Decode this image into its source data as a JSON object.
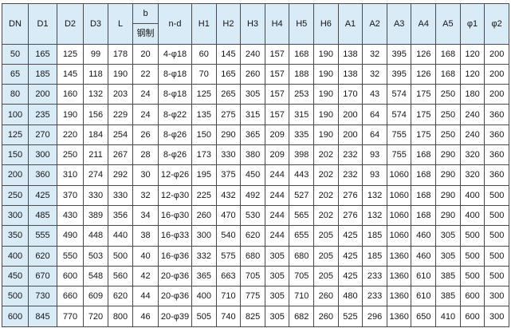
{
  "table": {
    "title": "flange-dimension-spec-table",
    "header": {
      "left": [
        "DN",
        "D1",
        "D2",
        "D3",
        "L"
      ],
      "b_top": "b",
      "b_bottom": "钢制",
      "right": [
        "n-d",
        "H1",
        "H2",
        "H3",
        "H4",
        "H5",
        "H6",
        "A1",
        "A2",
        "A3",
        "A4",
        "A5",
        "φ1",
        "φ2"
      ]
    },
    "rows": [
      [
        "50",
        "165",
        "125",
        "99",
        "178",
        "20",
        "4-φ18",
        "60",
        "145",
        "240",
        "157",
        "168",
        "190",
        "138",
        "32",
        "395",
        "126",
        "168",
        "120",
        "200"
      ],
      [
        "65",
        "185",
        "145",
        "118",
        "190",
        "22",
        "8-φ18",
        "70",
        "165",
        "260",
        "157",
        "188",
        "190",
        "138",
        "32",
        "395",
        "126",
        "168",
        "120",
        "200"
      ],
      [
        "80",
        "200",
        "160",
        "132",
        "203",
        "24",
        "8-φ18",
        "125",
        "265",
        "305",
        "157",
        "253",
        "190",
        "170",
        "43",
        "574",
        "175",
        "250",
        "180",
        "200"
      ],
      [
        "100",
        "235",
        "190",
        "156",
        "229",
        "24",
        "8-φ22",
        "135",
        "275",
        "315",
        "157",
        "315",
        "190",
        "200",
        "64",
        "574",
        "175",
        "250",
        "240",
        "360"
      ],
      [
        "125",
        "270",
        "220",
        "184",
        "254",
        "26",
        "8-φ26",
        "150",
        "290",
        "365",
        "209",
        "335",
        "190",
        "200",
        "64",
        "755",
        "175",
        "250",
        "240",
        "360"
      ],
      [
        "150",
        "300",
        "250",
        "211",
        "267",
        "28",
        "8-φ26",
        "173",
        "330",
        "380",
        "209",
        "398",
        "202",
        "232",
        "93",
        "755",
        "168",
        "290",
        "320",
        "360"
      ],
      [
        "200",
        "360",
        "310",
        "274",
        "292",
        "30",
        "12-φ26",
        "195",
        "375",
        "450",
        "244",
        "443",
        "202",
        "232",
        "93",
        "1060",
        "168",
        "290",
        "320",
        "360"
      ],
      [
        "250",
        "425",
        "370",
        "330",
        "330",
        "32",
        "12-φ30",
        "225",
        "432",
        "492",
        "244",
        "527",
        "202",
        "276",
        "132",
        "1060",
        "168",
        "290",
        "400",
        "500"
      ],
      [
        "300",
        "485",
        "430",
        "389",
        "356",
        "34",
        "16-φ30",
        "260",
        "470",
        "530",
        "244",
        "565",
        "202",
        "276",
        "132",
        "1060",
        "168",
        "290",
        "400",
        "500"
      ],
      [
        "350",
        "555",
        "490",
        "448",
        "440",
        "38",
        "16-φ33",
        "300",
        "540",
        "620",
        "244",
        "655",
        "205",
        "425",
        "185",
        "1060",
        "460",
        "305",
        "500",
        "500"
      ],
      [
        "400",
        "620",
        "550",
        "503",
        "500",
        "40",
        "16-φ36",
        "332",
        "575",
        "680",
        "305",
        "680",
        "205",
        "425",
        "185",
        "1360",
        "460",
        "305",
        "500",
        "500"
      ],
      [
        "450",
        "670",
        "600",
        "548",
        "560",
        "42",
        "20-φ36",
        "365",
        "663",
        "705",
        "305",
        "705",
        "205",
        "425",
        "233",
        "1360",
        "610",
        "385",
        "500",
        "500"
      ],
      [
        "500",
        "730",
        "660",
        "609",
        "620",
        "44",
        "20-φ36",
        "400",
        "710",
        "775",
        "305",
        "710",
        "260",
        "480",
        "233",
        "1360",
        "610",
        "385",
        "600",
        "300"
      ],
      [
        "600",
        "845",
        "770",
        "720",
        "800",
        "46",
        "20-φ39",
        "505",
        "740",
        "825",
        "305",
        "682",
        "260",
        "525",
        "296",
        "1360",
        "650",
        "410",
        "600",
        "300"
      ]
    ],
    "colors": {
      "header_bg": "#d9ebf7",
      "highlight_column_bg": "#d9ebf7",
      "border": "#4a4a4a",
      "text": "#141414",
      "page_bg": "#fdfdfd"
    }
  }
}
